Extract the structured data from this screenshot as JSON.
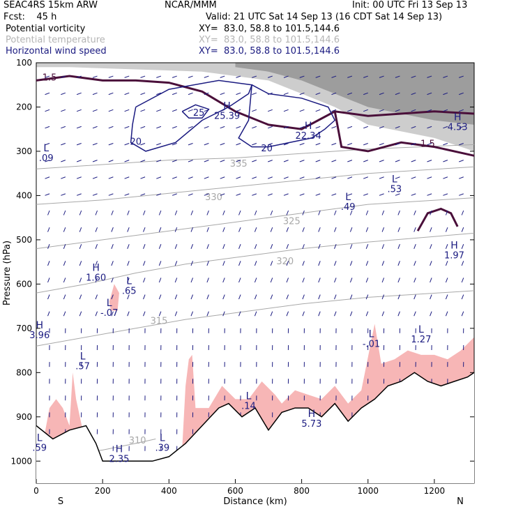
{
  "header": {
    "title": "SEAC4RS 15km ARW",
    "center": "NCAR/MMM",
    "init": "Init: 00 UTC Fri 13 Sep 13",
    "fcst_label": "Fcst:",
    "fcst_value": "45 h",
    "valid": "Valid: 21 UTC Sat 14 Sep 13 (16 CDT Sat 14 Sep 13)"
  },
  "legend": [
    {
      "label": "Potential vorticity",
      "xy": "XY=  83.0, 58.8 to 101.5,144.6",
      "color": "#000000"
    },
    {
      "label": "Potential temperature",
      "xy": "XY=  83.0, 58.8 to 101.5,144.6",
      "color": "#b4b4b4"
    },
    {
      "label": "Horizontal wind speed",
      "xy": "XY=  83.0, 58.8 to 101.5,144.6",
      "color": "#1a1a80"
    }
  ],
  "colors": {
    "pv_contour": "#4a0f3a",
    "theta": "#a8a8a8",
    "wind": "#1a1a80",
    "pv_fill": "#f7b6b6",
    "terrain": "#000000"
  },
  "chart_data": {
    "type": "cross-section",
    "xlabel": "Distance (km)",
    "ylabel": "Pressure (hPa)",
    "xlim": [
      0,
      1320
    ],
    "ylim": [
      1050,
      100
    ],
    "xticks": [
      0,
      200,
      400,
      600,
      800,
      1000,
      1200
    ],
    "yticks": [
      100,
      200,
      300,
      400,
      500,
      600,
      700,
      800,
      900,
      1000
    ],
    "end_labels": {
      "left": "S",
      "right": "N"
    },
    "theta_isentropes": [
      {
        "label": "310",
        "points": [
          [
            0,
            1000
          ],
          [
            100,
            985
          ],
          [
            200,
            975
          ],
          [
            300,
            960
          ],
          [
            360,
            950
          ]
        ],
        "label_at": [
          305,
          960
        ]
      },
      {
        "label": "315",
        "points": [
          [
            0,
            740
          ],
          [
            150,
            720
          ],
          [
            300,
            700
          ],
          [
            450,
            680
          ],
          [
            600,
            665
          ],
          [
            800,
            645
          ],
          [
            1000,
            630
          ],
          [
            1320,
            615
          ]
        ],
        "label_at": [
          370,
          690
        ]
      },
      {
        "label": "320",
        "points": [
          [
            0,
            620
          ],
          [
            150,
            600
          ],
          [
            300,
            575
          ],
          [
            450,
            555
          ],
          [
            600,
            540
          ],
          [
            800,
            520
          ],
          [
            1000,
            505
          ],
          [
            1320,
            485
          ]
        ],
        "label_at": [
          750,
          555
        ]
      },
      {
        "label": "325",
        "points": [
          [
            0,
            520
          ],
          [
            200,
            500
          ],
          [
            400,
            480
          ],
          [
            600,
            460
          ],
          [
            800,
            440
          ],
          [
            1000,
            420
          ],
          [
            1320,
            405
          ]
        ],
        "label_at": [
          770,
          465
        ]
      },
      {
        "label": "330",
        "points": [
          [
            0,
            420
          ],
          [
            200,
            410
          ],
          [
            400,
            395
          ],
          [
            600,
            380
          ],
          [
            800,
            365
          ],
          [
            1000,
            350
          ],
          [
            1320,
            335
          ]
        ],
        "label_at": [
          535,
          410
        ]
      },
      {
        "label": "335",
        "points": [
          [
            0,
            340
          ],
          [
            200,
            330
          ],
          [
            400,
            320
          ],
          [
            600,
            315
          ],
          [
            800,
            305
          ],
          [
            1000,
            295
          ],
          [
            1320,
            285
          ]
        ],
        "label_at": [
          610,
          335
        ]
      }
    ],
    "pv_contours": [
      {
        "label": "1.5",
        "points": [
          [
            0,
            140
          ],
          [
            100,
            130
          ],
          [
            200,
            140
          ],
          [
            300,
            140
          ],
          [
            400,
            145
          ],
          [
            500,
            165
          ],
          [
            600,
            210
          ],
          [
            700,
            240
          ],
          [
            800,
            250
          ],
          [
            850,
            230
          ],
          [
            900,
            210
          ],
          [
            950,
            215
          ],
          [
            1000,
            220
          ],
          [
            1200,
            210
          ],
          [
            1320,
            215
          ]
        ],
        "label_at": [
          40,
          140
        ]
      },
      {
        "label": "1.5",
        "points": [
          [
            900,
            210
          ],
          [
            920,
            290
          ],
          [
            1000,
            300
          ],
          [
            1100,
            280
          ],
          [
            1200,
            290
          ],
          [
            1320,
            310
          ]
        ],
        "label_at": [
          1180,
          290
        ]
      },
      {
        "label": "",
        "points": [
          [
            1150,
            480
          ],
          [
            1180,
            440
          ],
          [
            1220,
            430
          ],
          [
            1250,
            440
          ],
          [
            1270,
            470
          ]
        ],
        "label_at": [
          0,
          0
        ]
      }
    ],
    "wind_speed_contours": [
      {
        "label": "20",
        "points": [
          [
            300,
            200
          ],
          [
            400,
            160
          ],
          [
            550,
            140
          ],
          [
            650,
            150
          ],
          [
            640,
            170
          ],
          [
            580,
            200
          ],
          [
            500,
            230
          ],
          [
            420,
            280
          ],
          [
            330,
            300
          ],
          [
            285,
            280
          ],
          [
            290,
            240
          ],
          [
            300,
            200
          ]
        ],
        "label_at": [
          300,
          285
        ]
      },
      {
        "label": "20",
        "points": [
          [
            650,
            150
          ],
          [
            700,
            170
          ],
          [
            800,
            180
          ],
          [
            880,
            200
          ],
          [
            900,
            230
          ],
          [
            870,
            250
          ],
          [
            830,
            270
          ],
          [
            700,
            290
          ],
          [
            650,
            290
          ],
          [
            610,
            270
          ],
          [
            640,
            230
          ],
          [
            650,
            150
          ]
        ],
        "label_at": [
          695,
          300
        ]
      },
      {
        "label": "25",
        "points": [
          [
            440,
            210
          ],
          [
            480,
            195
          ],
          [
            520,
            205
          ],
          [
            500,
            225
          ],
          [
            460,
            225
          ],
          [
            440,
            210
          ]
        ],
        "label_at": [
          490,
          220
        ]
      }
    ],
    "labels": [
      {
        "text": "H",
        "value": "25.39",
        "x": 575,
        "p": 205
      },
      {
        "text": "H",
        "value": "22.34",
        "x": 820,
        "p": 250
      },
      {
        "text": "H",
        "value": "4.53",
        "x": 1270,
        "p": 230
      },
      {
        "text": "L",
        "value": ".09",
        "x": 30,
        "p": 300
      },
      {
        "text": "L",
        "value": ".53",
        "x": 1080,
        "p": 370
      },
      {
        "text": "L",
        "value": ".49",
        "x": 940,
        "p": 410
      },
      {
        "text": "H",
        "value": "1.97",
        "x": 1260,
        "p": 520
      },
      {
        "text": "H",
        "value": "1.60",
        "x": 180,
        "p": 570
      },
      {
        "text": "L",
        "value": ".65",
        "x": 280,
        "p": 600
      },
      {
        "text": "L",
        "value": "-.07",
        "x": 220,
        "p": 650
      },
      {
        "text": "H",
        "value": "3.96",
        "x": 10,
        "p": 700
      },
      {
        "text": "L",
        "value": ".57",
        "x": 140,
        "p": 770
      },
      {
        "text": "L",
        "value": "-.01",
        "x": 1010,
        "p": 720
      },
      {
        "text": "L",
        "value": "1.27",
        "x": 1160,
        "p": 710
      },
      {
        "text": "L",
        "value": ".14",
        "x": 640,
        "p": 860
      },
      {
        "text": "H",
        "value": "5.73",
        "x": 830,
        "p": 900
      },
      {
        "text": "L",
        "value": ".39",
        "x": 380,
        "p": 955
      },
      {
        "text": "H",
        "value": "2.35",
        "x": 250,
        "p": 980
      },
      {
        "text": "L",
        "value": ".59",
        "x": 10,
        "p": 955
      }
    ],
    "terrain": [
      [
        0,
        920
      ],
      [
        50,
        950
      ],
      [
        100,
        930
      ],
      [
        150,
        920
      ],
      [
        180,
        960
      ],
      [
        200,
        1000
      ],
      [
        250,
        1000
      ],
      [
        300,
        1000
      ],
      [
        350,
        1000
      ],
      [
        400,
        990
      ],
      [
        450,
        960
      ],
      [
        500,
        920
      ],
      [
        550,
        880
      ],
      [
        580,
        870
      ],
      [
        620,
        900
      ],
      [
        660,
        880
      ],
      [
        700,
        930
      ],
      [
        740,
        890
      ],
      [
        780,
        880
      ],
      [
        820,
        880
      ],
      [
        860,
        900
      ],
      [
        900,
        870
      ],
      [
        940,
        910
      ],
      [
        980,
        880
      ],
      [
        1020,
        860
      ],
      [
        1060,
        830
      ],
      [
        1100,
        820
      ],
      [
        1140,
        800
      ],
      [
        1180,
        820
      ],
      [
        1220,
        830
      ],
      [
        1260,
        820
      ],
      [
        1300,
        810
      ],
      [
        1320,
        800
      ]
    ]
  }
}
